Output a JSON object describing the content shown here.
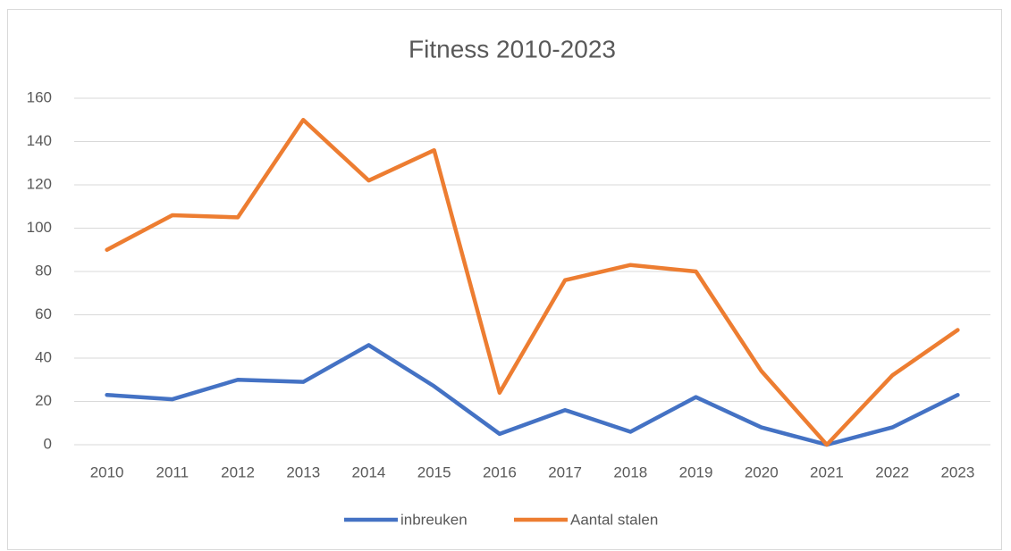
{
  "chart_data": {
    "type": "line",
    "title": "Fitness 2010-2023",
    "categories": [
      "2010",
      "2011",
      "2012",
      "2013",
      "2014",
      "2015",
      "2016",
      "2017",
      "2018",
      "2019",
      "2020",
      "2021",
      "2022",
      "2023"
    ],
    "series": [
      {
        "name": "inbreuken",
        "color": "#4472c4",
        "values": [
          23,
          21,
          30,
          29,
          46,
          27,
          5,
          16,
          6,
          22,
          8,
          0,
          8,
          23
        ]
      },
      {
        "name": "Aantal stalen",
        "color": "#ed7d31",
        "values": [
          90,
          106,
          105,
          150,
          122,
          136,
          24,
          76,
          83,
          80,
          34,
          0,
          32,
          53
        ]
      }
    ],
    "ylim": [
      0,
      160
    ],
    "yticks": [
      0,
      20,
      40,
      60,
      80,
      100,
      120,
      140,
      160
    ],
    "grid": true,
    "legend": "bottom"
  }
}
